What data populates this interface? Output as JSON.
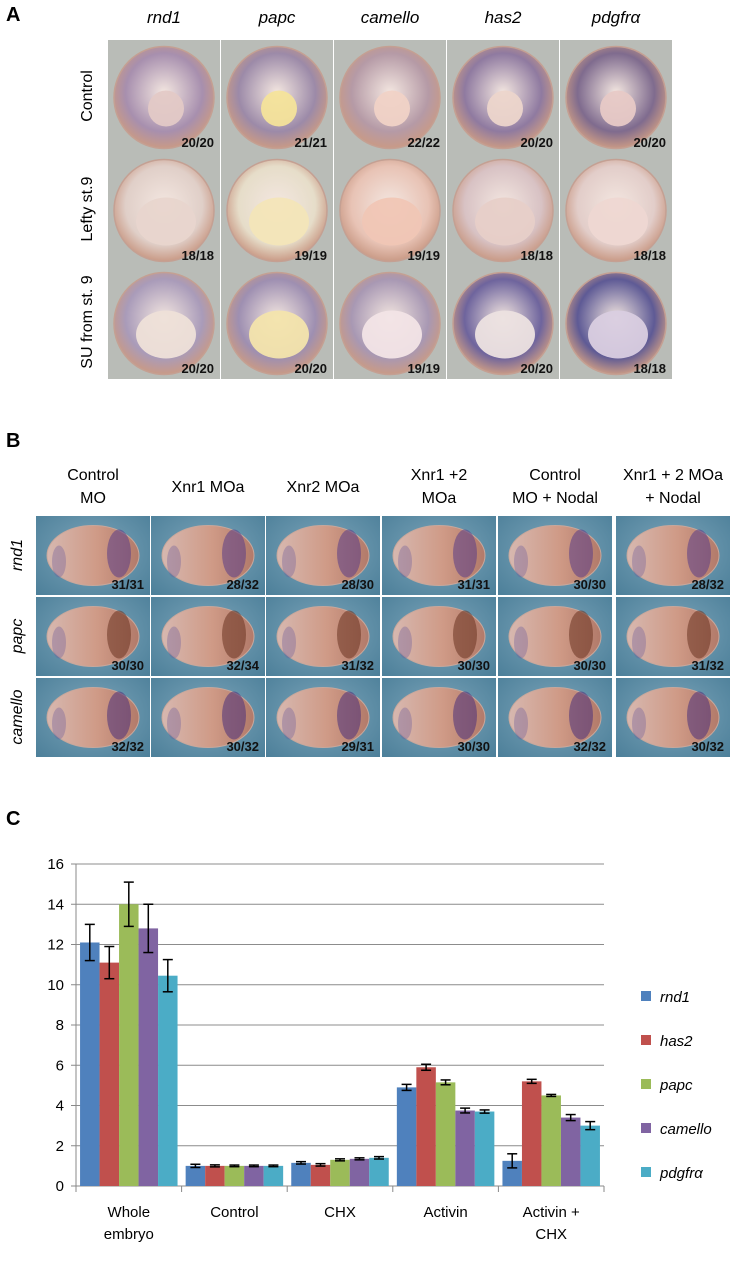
{
  "panel_a": {
    "letter": "A",
    "genes": [
      "rnd1",
      "papc",
      "camello",
      "has2",
      "pdgfrα"
    ],
    "rows": [
      {
        "label": "Control",
        "counts": [
          "20/20",
          "21/21",
          "22/22",
          "20/20",
          "20/20"
        ]
      },
      {
        "label": "Lefty st.9",
        "counts": [
          "18/18",
          "19/19",
          "19/19",
          "18/18",
          "18/18"
        ]
      },
      {
        "label": "SU from st. 9",
        "counts": [
          "20/20",
          "20/20",
          "19/19",
          "20/20",
          "18/18"
        ]
      }
    ]
  },
  "panel_b": {
    "letter": "B",
    "conditions": [
      {
        "line1": "Control",
        "line2": "MO"
      },
      {
        "line1": "Xnr1 MOa",
        "line2": ""
      },
      {
        "line1": "Xnr2 MOa",
        "line2": ""
      },
      {
        "line1": "Xnr1 +2",
        "line2": "MOa"
      },
      {
        "line1": "Control",
        "line2": "MO + Nodal"
      },
      {
        "line1": "Xnr1 + 2 MOa",
        "line2": "+ Nodal"
      }
    ],
    "rows": [
      {
        "label": "rnd1",
        "counts": [
          "31/31",
          "28/32",
          "28/30",
          "31/31",
          "30/30",
          "28/32"
        ]
      },
      {
        "label": "papc",
        "counts": [
          "30/30",
          "32/34",
          "31/32",
          "30/30",
          "30/30",
          "31/32"
        ]
      },
      {
        "label": "camello",
        "counts": [
          "32/32",
          "30/32",
          "29/31",
          "30/30",
          "32/32",
          "30/32"
        ]
      }
    ]
  },
  "panel_c": {
    "letter": "C"
  },
  "chart_data": {
    "type": "bar",
    "title": "",
    "xlabel": "",
    "ylabel": "",
    "ylim": [
      0,
      16
    ],
    "yticks": [
      "0",
      "2",
      "4",
      "6",
      "8",
      "10",
      "12",
      "14",
      "16"
    ],
    "grid": true,
    "legend": "right",
    "categories": [
      "Whole embryo",
      "Control",
      "CHX",
      "Activin",
      "Activin + CHX"
    ],
    "category_lines": [
      [
        "Whole",
        "embryo"
      ],
      [
        "Control"
      ],
      [
        "CHX"
      ],
      [
        "Activin"
      ],
      [
        "Activin +",
        "CHX"
      ]
    ],
    "series": [
      {
        "name": "rnd1",
        "color": "#4f81bd",
        "values": [
          12.1,
          1.0,
          1.15,
          4.9,
          1.25
        ],
        "errors": [
          0.9,
          0.08,
          0.06,
          0.15,
          0.35
        ]
      },
      {
        "name": "has2",
        "color": "#c0504d",
        "values": [
          11.1,
          1.0,
          1.05,
          5.9,
          5.2
        ],
        "errors": [
          0.8,
          0.05,
          0.06,
          0.15,
          0.1
        ]
      },
      {
        "name": "papc",
        "color": "#9bbb59",
        "values": [
          14.0,
          1.0,
          1.3,
          5.15,
          4.5
        ],
        "errors": [
          1.1,
          0.04,
          0.05,
          0.12,
          0.05
        ]
      },
      {
        "name": "camello",
        "color": "#8064a2",
        "values": [
          12.8,
          1.0,
          1.35,
          3.75,
          3.4
        ],
        "errors": [
          1.2,
          0.04,
          0.05,
          0.12,
          0.15
        ]
      },
      {
        "name": "pdgfrα",
        "color": "#4bacc6",
        "values": [
          10.45,
          1.0,
          1.4,
          3.7,
          3.0
        ],
        "errors": [
          0.8,
          0.04,
          0.06,
          0.08,
          0.2
        ]
      }
    ]
  }
}
